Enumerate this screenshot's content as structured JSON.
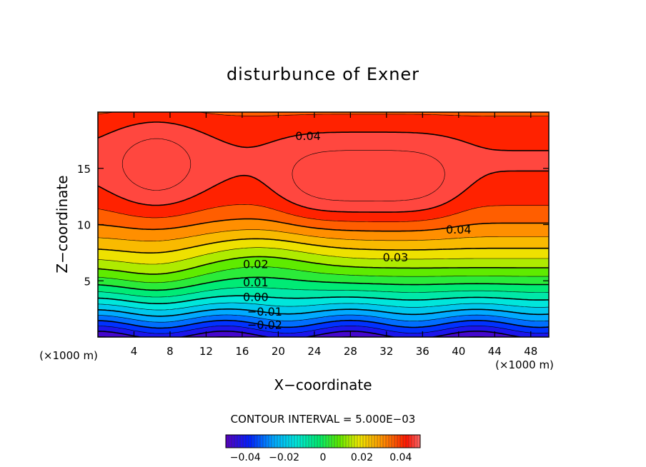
{
  "chart_data": {
    "type": "contour",
    "title": "disturbunce of Exner",
    "xlabel": "X−coordinate",
    "ylabel": "Z−coordinate",
    "x_unit_left": "(×1000 m)",
    "x_unit_right": "(×1000 m)",
    "xlim": [
      0,
      50
    ],
    "ylim": [
      0,
      20
    ],
    "xticks": [
      4,
      8,
      12,
      16,
      20,
      24,
      28,
      32,
      36,
      40,
      44,
      48
    ],
    "yticks": [
      5,
      10,
      15
    ],
    "contour_interval_text": "CONTOUR INTERVAL = 5.000E−03",
    "contour_interval": 0.005,
    "value_range": [
      -0.045,
      0.045
    ],
    "contour_labels": [
      {
        "text": "0.04",
        "x": 23.3,
        "y": 17.9
      },
      {
        "text": "0.04",
        "x": 40.0,
        "y": 9.6
      },
      {
        "text": "0.03",
        "x": 33.0,
        "y": 7.1
      },
      {
        "text": "0.02",
        "x": 17.5,
        "y": 6.5
      },
      {
        "text": "0.01",
        "x": 17.5,
        "y": 4.9
      },
      {
        "text": "0.00",
        "x": 17.5,
        "y": 3.6
      },
      {
        "text": "−0.01",
        "x": 18.5,
        "y": 2.3
      },
      {
        "text": "−0.02",
        "x": 18.5,
        "y": 1.1
      }
    ],
    "colorbar": {
      "min": -0.05,
      "max": 0.05,
      "ticks": [
        "−0.04",
        "−0.02",
        "0",
        "0.02",
        "0.04"
      ],
      "tick_values": [
        -0.04,
        -0.02,
        0,
        0.02,
        0.04
      ]
    }
  }
}
